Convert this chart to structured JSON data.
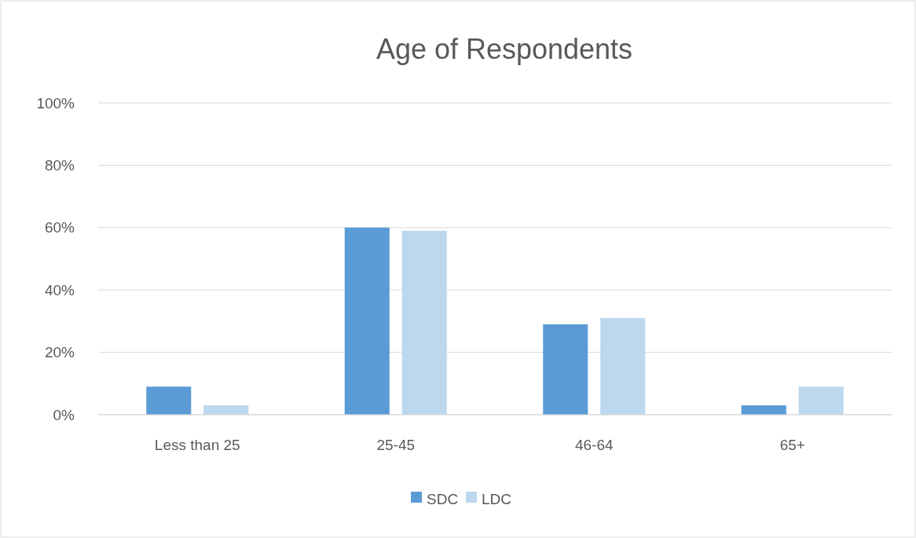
{
  "chart_data": {
    "type": "bar",
    "title": "Age of Respondents",
    "categories": [
      "Less than 25",
      "25-45",
      "46-64",
      "65+"
    ],
    "series": [
      {
        "name": "SDC",
        "color": "#5b9bd5",
        "values": [
          9,
          60,
          29,
          3
        ]
      },
      {
        "name": "LDC",
        "color": "#bdd7ee",
        "values": [
          3,
          59,
          31,
          9
        ]
      }
    ],
    "ylim": [
      0,
      100
    ],
    "yticks": [
      {
        "value": 0,
        "label": "0%"
      },
      {
        "value": 20,
        "label": "20%"
      },
      {
        "value": 40,
        "label": "40%"
      },
      {
        "value": 60,
        "label": "60%"
      },
      {
        "value": 80,
        "label": "80%"
      },
      {
        "value": 100,
        "label": "100%"
      }
    ],
    "grid": "y",
    "legend": "bottom"
  }
}
